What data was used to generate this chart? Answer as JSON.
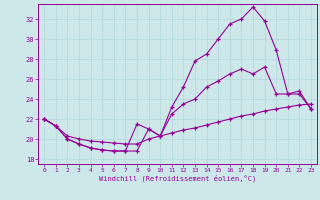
{
  "xlabel": "Windchill (Refroidissement éolien,°C)",
  "background_color": "#cce8e8",
  "line_color": "#990099",
  "xlim": [
    -0.5,
    23.5
  ],
  "ylim": [
    17.5,
    33.5
  ],
  "yticks": [
    18,
    20,
    22,
    24,
    26,
    28,
    30,
    32
  ],
  "xticks": [
    0,
    1,
    2,
    3,
    4,
    5,
    6,
    7,
    8,
    9,
    10,
    11,
    12,
    13,
    14,
    15,
    16,
    17,
    18,
    19,
    20,
    21,
    22,
    23
  ],
  "series1_x": [
    0,
    1,
    2,
    3,
    4,
    5,
    6,
    7,
    8,
    9,
    10,
    11,
    12,
    13,
    14,
    15,
    16,
    17,
    18,
    19,
    20,
    21,
    22,
    23
  ],
  "series1_y": [
    22.0,
    21.3,
    20.0,
    19.5,
    19.1,
    18.9,
    18.8,
    18.8,
    18.8,
    21.0,
    20.3,
    23.2,
    25.2,
    27.8,
    28.5,
    30.0,
    31.5,
    32.0,
    33.2,
    31.8,
    28.9,
    24.5,
    24.5,
    23.0
  ],
  "series2_x": [
    0,
    1,
    2,
    3,
    4,
    5,
    6,
    7,
    8,
    9,
    10,
    11,
    12,
    13,
    14,
    15,
    16,
    17,
    18,
    19,
    20,
    21,
    22,
    23
  ],
  "series2_y": [
    22.0,
    21.3,
    20.0,
    19.5,
    19.1,
    18.9,
    18.8,
    18.8,
    21.5,
    21.0,
    20.3,
    22.5,
    23.5,
    24.0,
    25.2,
    25.8,
    26.5,
    27.0,
    26.5,
    27.2,
    24.5,
    24.5,
    24.8,
    23.0
  ],
  "series3_x": [
    0,
    1,
    2,
    3,
    4,
    5,
    6,
    7,
    8,
    9,
    10,
    11,
    12,
    13,
    14,
    15,
    16,
    17,
    18,
    19,
    20,
    21,
    22,
    23
  ],
  "series3_y": [
    22.0,
    21.3,
    20.3,
    20.0,
    19.8,
    19.7,
    19.6,
    19.5,
    19.5,
    20.0,
    20.3,
    20.6,
    20.9,
    21.1,
    21.4,
    21.7,
    22.0,
    22.3,
    22.5,
    22.8,
    23.0,
    23.2,
    23.4,
    23.5
  ]
}
